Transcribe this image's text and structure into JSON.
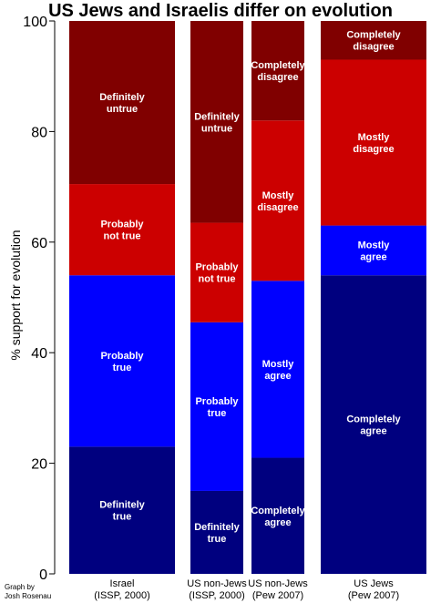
{
  "chart_data": {
    "type": "bar",
    "stacked": true,
    "title": "US Jews and Israelis differ on evolution",
    "ylabel": "% support for evolution",
    "ylim": [
      0,
      100
    ],
    "yticks": [
      0,
      20,
      40,
      60,
      80,
      100
    ],
    "credit": [
      "Graph by",
      "Josh Rosenau"
    ],
    "bars": [
      {
        "category": [
          "Israel",
          "(ISSP, 2000)"
        ],
        "segments": [
          {
            "label": [
              "Definitely",
              "true"
            ],
            "value": 23,
            "color": "#00007f"
          },
          {
            "label": [
              "Probably",
              "true"
            ],
            "value": 31,
            "color": "#0000ff"
          },
          {
            "label": [
              "Probably",
              "not true"
            ],
            "value": 16.5,
            "color": "#cc0000"
          },
          {
            "label": [
              "Definitely",
              "untrue"
            ],
            "value": 29.5,
            "color": "#800000"
          }
        ]
      },
      {
        "category": [
          "US non-Jews",
          "(ISSP, 2000)"
        ],
        "segments": [
          {
            "label": [
              "Definitely",
              "true"
            ],
            "value": 15,
            "color": "#00007f"
          },
          {
            "label": [
              "Probably",
              "true"
            ],
            "value": 30.5,
            "color": "#0000ff"
          },
          {
            "label": [
              "Probably",
              "not true"
            ],
            "value": 18,
            "color": "#cc0000"
          },
          {
            "label": [
              "Definitely",
              "untrue"
            ],
            "value": 36.5,
            "color": "#800000"
          }
        ]
      },
      {
        "category": [
          "US non-Jews",
          "(Pew 2007)"
        ],
        "segments": [
          {
            "label": [
              "Completely",
              "agree"
            ],
            "value": 21,
            "color": "#00007f"
          },
          {
            "label": [
              "Mostly",
              "agree"
            ],
            "value": 32,
            "color": "#0000ff"
          },
          {
            "label": [
              "Mostly",
              "disagree"
            ],
            "value": 29,
            "color": "#cc0000"
          },
          {
            "label": [
              "Completely",
              "disagree"
            ],
            "value": 18,
            "color": "#800000"
          }
        ]
      },
      {
        "category": [
          "US Jews",
          "(Pew 2007)"
        ],
        "segments": [
          {
            "label": [
              "Completely",
              "agree"
            ],
            "value": 54,
            "color": "#00007f"
          },
          {
            "label": [
              "Mostly",
              "agree"
            ],
            "value": 9,
            "color": "#0000ff"
          },
          {
            "label": [
              "Mostly",
              "disagree"
            ],
            "value": 30,
            "color": "#cc0000"
          },
          {
            "label": [
              "Completely",
              "disagree"
            ],
            "value": 7,
            "color": "#800000"
          }
        ]
      }
    ]
  }
}
